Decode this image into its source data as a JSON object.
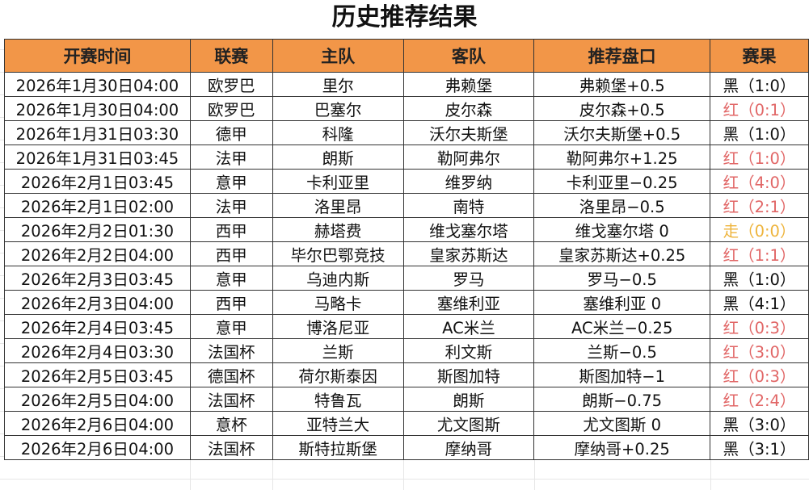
{
  "title": "历史推荐结果",
  "headers": [
    "开赛时间",
    "联赛",
    "主队",
    "客队",
    "推荐盘口",
    "赛果"
  ],
  "colors": {
    "header_bg": "#f29648",
    "red": "#e16666",
    "draw": "#eeb43c",
    "black": "#111111"
  },
  "rows": [
    [
      "2026年1月30日04:00",
      "欧罗巴",
      "里尔",
      "弗赖堡",
      "弗赖堡+0.5",
      "黑（1:0）",
      "black"
    ],
    [
      "2026年1月30日04:00",
      "欧罗巴",
      "巴塞尔",
      "皮尔森",
      "皮尔森+0.5",
      "红（0:1）",
      "red"
    ],
    [
      "2026年1月31日03:30",
      "德甲",
      "科隆",
      "沃尔夫斯堡",
      "沃尔夫斯堡+0.5",
      "黑（1:0）",
      "black"
    ],
    [
      "2026年1月31日03:45",
      "法甲",
      "朗斯",
      "勒阿弗尔",
      "勒阿弗尔+1.25",
      "红（1:0）",
      "red"
    ],
    [
      "2026年2月1日03:45",
      "意甲",
      "卡利亚里",
      "维罗纳",
      "卡利亚里−0.25",
      "红（4:0）",
      "red"
    ],
    [
      "2026年2月1日02:00",
      "法甲",
      "洛里昂",
      "南特",
      "洛里昂−0.5",
      "红（2:1）",
      "red"
    ],
    [
      "2026年2月2日01:30",
      "西甲",
      "赫塔费",
      "维戈塞尔塔",
      "维戈塞尔塔 0",
      "走（0:0）",
      "draw"
    ],
    [
      "2026年2月2日04:00",
      "西甲",
      "毕尔巴鄂竞技",
      "皇家苏斯达",
      "皇家苏斯达+0.25",
      "红（1:1）",
      "red"
    ],
    [
      "2026年2月3日03:45",
      "意甲",
      "乌迪内斯",
      "罗马",
      "罗马−0.5",
      "黑（1:0）",
      "black"
    ],
    [
      "2026年2月3日04:00",
      "西甲",
      "马略卡",
      "塞维利亚",
      "塞维利亚 0",
      "黑（4:1）",
      "black"
    ],
    [
      "2026年2月4日03:45",
      "意甲",
      "博洛尼亚",
      "AC米兰",
      "AC米兰−0.25",
      "红（0:3）",
      "red"
    ],
    [
      "2026年2月4日03:30",
      "法国杯",
      "兰斯",
      "利文斯",
      "兰斯−0.5",
      "红（3:0）",
      "red"
    ],
    [
      "2026年2月5日03:45",
      "德国杯",
      "荷尔斯泰因",
      "斯图加特",
      "斯图加特−1",
      "红（0:3）",
      "red"
    ],
    [
      "2026年2月5日04:00",
      "法国杯",
      "特鲁瓦",
      "朗斯",
      "朗斯−0.75",
      "红（2:4）",
      "red"
    ],
    [
      "2026年2月6日04:00",
      "意杯",
      "亚特兰大",
      "尤文图斯",
      "尤文图斯 0",
      "黑（3:0）",
      "black"
    ],
    [
      "2026年2月6日04:00",
      "法国杯",
      "斯特拉斯堡",
      "摩纳哥",
      "摩纳哥+0.25",
      "黑（3:1）",
      "black"
    ]
  ]
}
